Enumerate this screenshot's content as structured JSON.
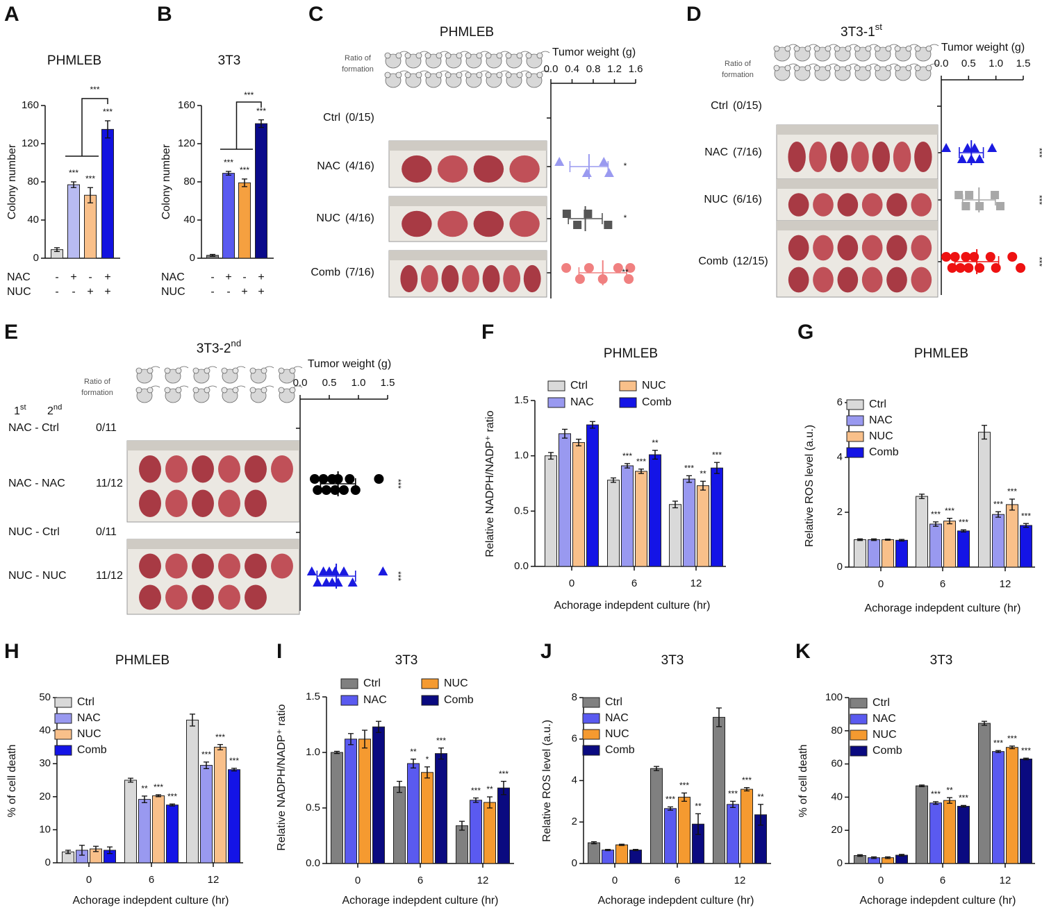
{
  "chart_data": [
    {
      "panel": "A",
      "type": "bar",
      "title": "PHMLEB",
      "ylabel": "Colony number",
      "ylim": [
        0,
        160
      ],
      "yticks": [
        0,
        40,
        80,
        120,
        160
      ],
      "values": [
        9,
        77,
        66,
        135
      ],
      "errors": [
        2,
        3,
        8,
        9
      ],
      "colors": [
        "#d9d9d9",
        "#b8bbf2",
        "#f9c08a",
        "#1212e0"
      ],
      "significance": [
        null,
        "***",
        "***",
        "***"
      ],
      "bracket_label": "***",
      "conditions": [
        {
          "name": "NAC",
          "marks": [
            "-",
            "+",
            "-",
            "+"
          ]
        },
        {
          "name": "NUC",
          "marks": [
            "-",
            "-",
            "+",
            "+"
          ]
        }
      ]
    },
    {
      "panel": "B",
      "type": "bar",
      "title": "3T3",
      "ylabel": "Colony number",
      "ylim": [
        0,
        160
      ],
      "yticks": [
        0,
        40,
        80,
        120,
        160
      ],
      "values": [
        3,
        89,
        79,
        141
      ],
      "errors": [
        1,
        2,
        4,
        4
      ],
      "colors": [
        "#808080",
        "#5a5af0",
        "#f5a040",
        "#0a0a8a"
      ],
      "significance": [
        null,
        "***",
        "***",
        "***"
      ],
      "bracket_label": "***",
      "conditions": [
        {
          "name": "NAC",
          "marks": [
            "-",
            "+",
            "-",
            "+"
          ]
        },
        {
          "name": "NUC",
          "marks": [
            "-",
            "-",
            "+",
            "+"
          ]
        }
      ]
    },
    {
      "panel": "C",
      "type": "dotplot",
      "title": "PHMLEB",
      "ratio_label": [
        "Ratio of",
        "formation"
      ],
      "xlabel": "Tumor weight (g)",
      "xlim": [
        0,
        1.6
      ],
      "xticks": [
        {
          "value": 0,
          "label": "0.0"
        },
        0.4,
        0.8,
        1.2,
        1.6
      ],
      "groups": [
        {
          "name": "Ctrl",
          "ratio": "(0/15)",
          "values": []
        },
        {
          "name": "NAC",
          "ratio": "(4/16)",
          "color": "#9a9af0",
          "marker": "triangle",
          "values": [
            0.16,
            0.68,
            1.0,
            1.1
          ],
          "mean": 0.72,
          "sd": 0.36,
          "significance": "*"
        },
        {
          "name": "NUC",
          "ratio": "(4/16)",
          "color": "#555555",
          "marker": "square",
          "values": [
            0.3,
            0.5,
            0.7,
            1.08
          ],
          "mean": 0.65,
          "sd": 0.32,
          "significance": "*"
        },
        {
          "name": "Comb",
          "ratio": "(7/16)",
          "color": "#f08080",
          "marker": "circle",
          "values": [
            0.29,
            0.55,
            0.72,
            0.98,
            1.27,
            1.47,
            1.5
          ],
          "mean": 0.98,
          "sd": 0.45,
          "significance": "**"
        }
      ]
    },
    {
      "panel": "D",
      "type": "dotplot",
      "title": "3T3-1",
      "title_sup": "st",
      "ratio_label": [
        "Ratio of",
        "formation"
      ],
      "xlabel": "Tumor weight (g)",
      "xlim": [
        0,
        1.5
      ],
      "xticks": [
        {
          "value": 0,
          "label": "0.0"
        },
        0.5,
        {
          "value": 1,
          "label": "1.0"
        },
        1.5
      ],
      "groups": [
        {
          "name": "Ctrl",
          "ratio": "(0/15)",
          "values": []
        },
        {
          "name": "NAC",
          "ratio": "(7/16)",
          "color": "#1a1ae0",
          "marker": "triangle",
          "values": [
            0.09,
            0.38,
            0.48,
            0.55,
            0.61,
            0.7,
            0.93
          ],
          "mean": 0.55,
          "sd": 0.22,
          "significance": "***"
        },
        {
          "name": "NUC",
          "ratio": "(6/16)",
          "color": "#a8a8a8",
          "marker": "square",
          "values": [
            0.32,
            0.45,
            0.51,
            0.7,
            0.98,
            1.08
          ],
          "mean": 0.69,
          "sd": 0.3,
          "significance": "***"
        },
        {
          "name": "Comb",
          "ratio": "(12/15)",
          "color": "#ee1111",
          "marker": "circle",
          "values": [
            0.09,
            0.2,
            0.25,
            0.35,
            0.45,
            0.5,
            0.6,
            0.7,
            0.9,
            1.0,
            1.3,
            1.45
          ],
          "mean": 0.65,
          "sd": 0.4,
          "significance": "***"
        }
      ]
    },
    {
      "panel": "E",
      "type": "dotplot",
      "title": "3T3-2",
      "title_sup": "nd",
      "ratio_label": [
        "Ratio of",
        "formation"
      ],
      "xlabel": "Tumor weight (g)",
      "column_headers": [
        {
          "text": "1",
          "sup": "st"
        },
        {
          "text": "2",
          "sup": "nd"
        }
      ],
      "xlim": [
        0,
        1.5
      ],
      "xticks": [
        {
          "value": 0,
          "label": "0.0"
        },
        0.5,
        {
          "value": 1,
          "label": "1.0"
        },
        1.5
      ],
      "groups": [
        {
          "name": "NAC - Ctrl",
          "ratio": "0/11",
          "values": []
        },
        {
          "name": "NAC - NAC",
          "ratio": "11/12",
          "color": "#000000",
          "marker": "circle",
          "values": [
            0.25,
            0.3,
            0.4,
            0.45,
            0.55,
            0.6,
            0.65,
            0.75,
            0.85,
            0.95,
            1.35
          ],
          "mean": 0.65,
          "sd": 0.3,
          "significance": "***"
        },
        {
          "name": "NUC - Ctrl",
          "ratio": "0/11",
          "values": []
        },
        {
          "name": "NUC - NUC",
          "ratio": "11/12",
          "color": "#1a1ae0",
          "marker": "triangle",
          "values": [
            0.2,
            0.3,
            0.4,
            0.45,
            0.5,
            0.55,
            0.6,
            0.65,
            0.75,
            0.9,
            1.42
          ],
          "mean": 0.62,
          "sd": 0.33,
          "significance": "***"
        }
      ]
    },
    {
      "panel": "F",
      "type": "grouped_bar",
      "title": "PHMLEB",
      "ylabel": "Relative NADPH/NADP⁺ ratio",
      "xlabel": "Achorage indepdent culture (hr)",
      "categories": [
        "0",
        "6",
        "12"
      ],
      "ylim": [
        0,
        1.5
      ],
      "yticks": [
        {
          "value": 0,
          "label": "0.0"
        },
        0.5,
        {
          "value": 1,
          "label": "1.0"
        },
        1.5
      ],
      "series": [
        {
          "name": "Ctrl",
          "color": "#d9d9d9",
          "values": [
            1.0,
            0.78,
            0.56
          ],
          "errors": [
            0.03,
            0.02,
            0.03
          ]
        },
        {
          "name": "NAC",
          "color": "#9999f0",
          "values": [
            1.2,
            0.91,
            0.79
          ],
          "errors": [
            0.04,
            0.02,
            0.03
          ],
          "significance": [
            null,
            "***",
            "***"
          ]
        },
        {
          "name": "NUC",
          "color": "#f9c08a",
          "values": [
            1.12,
            0.86,
            0.73
          ],
          "errors": [
            0.03,
            0.02,
            0.04
          ],
          "significance": [
            null,
            "***",
            "**"
          ]
        },
        {
          "name": "Comb",
          "color": "#1414e6",
          "values": [
            1.28,
            1.01,
            0.89
          ],
          "errors": [
            0.03,
            0.04,
            0.05
          ],
          "significance": [
            null,
            "**",
            "***"
          ]
        }
      ]
    },
    {
      "panel": "G",
      "type": "grouped_bar",
      "title": "PHMLEB",
      "ylabel": "Relative ROS level (a.u.)",
      "xlabel": "Achorage indepdent culture (hr)",
      "categories": [
        "0",
        "6",
        "12"
      ],
      "ylim": [
        0,
        6
      ],
      "yticks": [
        0,
        2,
        4,
        6
      ],
      "series": [
        {
          "name": "Ctrl",
          "color": "#d9d9d9",
          "values": [
            1.0,
            2.58,
            4.92
          ],
          "errors": [
            0.03,
            0.08,
            0.25
          ]
        },
        {
          "name": "NAC",
          "color": "#9999f0",
          "values": [
            1.0,
            1.57,
            1.92
          ],
          "errors": [
            0.03,
            0.08,
            0.1
          ],
          "significance": [
            null,
            "***",
            "***"
          ]
        },
        {
          "name": "NUC",
          "color": "#f9c08a",
          "values": [
            1.0,
            1.68,
            2.28
          ],
          "errors": [
            0.02,
            0.1,
            0.2
          ],
          "significance": [
            null,
            "***",
            "***"
          ]
        },
        {
          "name": "Comb",
          "color": "#1414e6",
          "values": [
            0.98,
            1.32,
            1.52
          ],
          "errors": [
            0.03,
            0.04,
            0.07
          ],
          "significance": [
            null,
            "***",
            "***"
          ]
        }
      ]
    },
    {
      "panel": "H",
      "type": "grouped_bar",
      "title": "PHMLEB",
      "ylabel": "% of cell death",
      "xlabel": "Achorage indepdent culture (hr)",
      "categories": [
        "0",
        "6",
        "12"
      ],
      "ylim": [
        0,
        50
      ],
      "yticks": [
        0,
        10,
        20,
        30,
        40,
        50
      ],
      "series": [
        {
          "name": "Ctrl",
          "color": "#d9d9d9",
          "values": [
            3.3,
            25,
            43.2
          ],
          "errors": [
            0.5,
            0.6,
            1.8
          ]
        },
        {
          "name": "NAC",
          "color": "#9999f0",
          "values": [
            3.8,
            19.2,
            29.5
          ],
          "errors": [
            1.5,
            1,
            1
          ],
          "significance": [
            null,
            "**",
            "***"
          ]
        },
        {
          "name": "NUC",
          "color": "#f9c08a",
          "values": [
            4.2,
            20.3,
            35
          ],
          "errors": [
            0.8,
            0.3,
            0.8
          ],
          "significance": [
            null,
            "***",
            "***"
          ]
        },
        {
          "name": "Comb",
          "color": "#1414e6",
          "values": [
            3.8,
            17.5,
            28.2
          ],
          "errors": [
            1,
            0.3,
            0.4
          ],
          "significance": [
            null,
            "***",
            "***"
          ]
        }
      ]
    },
    {
      "panel": "I",
      "type": "grouped_bar",
      "title": "3T3",
      "ylabel": "Relative NADPH/NADP⁺ ratio",
      "xlabel": "Achorage indepdent culture (hr)",
      "categories": [
        "0",
        "6",
        "12"
      ],
      "ylim": [
        0,
        1.5
      ],
      "yticks": [
        {
          "value": 0,
          "label": "0.0"
        },
        0.5,
        {
          "value": 1,
          "label": "1.0"
        },
        1.5
      ],
      "series": [
        {
          "name": "Ctrl",
          "color": "#808080",
          "values": [
            1.0,
            0.69,
            0.34
          ],
          "errors": [
            0.01,
            0.05,
            0.04
          ]
        },
        {
          "name": "NAC",
          "color": "#5a5af0",
          "values": [
            1.12,
            0.9,
            0.57
          ],
          "errors": [
            0.05,
            0.04,
            0.02
          ],
          "significance": [
            null,
            "**",
            "***"
          ]
        },
        {
          "name": "NUC",
          "color": "#f59a30",
          "values": [
            1.12,
            0.82,
            0.55
          ],
          "errors": [
            0.08,
            0.05,
            0.05
          ],
          "significance": [
            null,
            "*",
            "**"
          ]
        },
        {
          "name": "Comb",
          "color": "#0a0a80",
          "values": [
            1.23,
            0.99,
            0.68
          ],
          "errors": [
            0.05,
            0.05,
            0.06
          ],
          "significance": [
            null,
            "***",
            "***"
          ]
        }
      ]
    },
    {
      "panel": "J",
      "type": "grouped_bar",
      "title": "3T3",
      "ylabel": "Relative ROS level (a.u.)",
      "xlabel": "Achorage indepdent culture (hr)",
      "categories": [
        "0",
        "6",
        "12"
      ],
      "ylim": [
        0,
        8
      ],
      "yticks": [
        0,
        2,
        4,
        6,
        8
      ],
      "series": [
        {
          "name": "Ctrl",
          "color": "#808080",
          "values": [
            1.0,
            4.58,
            7.05
          ],
          "errors": [
            0.05,
            0.1,
            0.45
          ]
        },
        {
          "name": "NAC",
          "color": "#5a5af0",
          "values": [
            0.65,
            2.65,
            2.85
          ],
          "errors": [
            0.03,
            0.08,
            0.15
          ],
          "significance": [
            null,
            "***",
            "***"
          ]
        },
        {
          "name": "NUC",
          "color": "#f59a30",
          "values": [
            0.9,
            3.2,
            3.58
          ],
          "errors": [
            0.03,
            0.2,
            0.08
          ],
          "significance": [
            null,
            "***",
            "***"
          ]
        },
        {
          "name": "Comb",
          "color": "#0a0a80",
          "values": [
            0.65,
            1.9,
            2.35
          ],
          "errors": [
            0.03,
            0.5,
            0.5
          ],
          "significance": [
            null,
            "**",
            "**"
          ]
        }
      ]
    },
    {
      "panel": "K",
      "type": "grouped_bar",
      "title": "3T3",
      "ylabel": "% of cell death",
      "xlabel": "Achorage indepdent culture (hr)",
      "categories": [
        "0",
        "6",
        "12"
      ],
      "ylim": [
        0,
        100
      ],
      "yticks": [
        0,
        20,
        40,
        60,
        80,
        100
      ],
      "series": [
        {
          "name": "Ctrl",
          "color": "#808080",
          "values": [
            4.8,
            46.8,
            84.5
          ],
          "errors": [
            0.5,
            0.5,
            1.2
          ]
        },
        {
          "name": "NAC",
          "color": "#5a5af0",
          "values": [
            3.5,
            36.5,
            67.5
          ],
          "errors": [
            0.5,
            0.8,
            0.6
          ],
          "significance": [
            null,
            "***",
            "***"
          ]
        },
        {
          "name": "NUC",
          "color": "#f59a30",
          "values": [
            3.5,
            38,
            70
          ],
          "errors": [
            0.5,
            1.7,
            0.8
          ],
          "significance": [
            null,
            "**",
            "***"
          ]
        },
        {
          "name": "Comb",
          "color": "#0a0a80",
          "values": [
            5,
            34.5,
            63
          ],
          "errors": [
            0.5,
            0.5,
            0.5
          ],
          "significance": [
            null,
            "***",
            "***"
          ]
        }
      ]
    }
  ]
}
